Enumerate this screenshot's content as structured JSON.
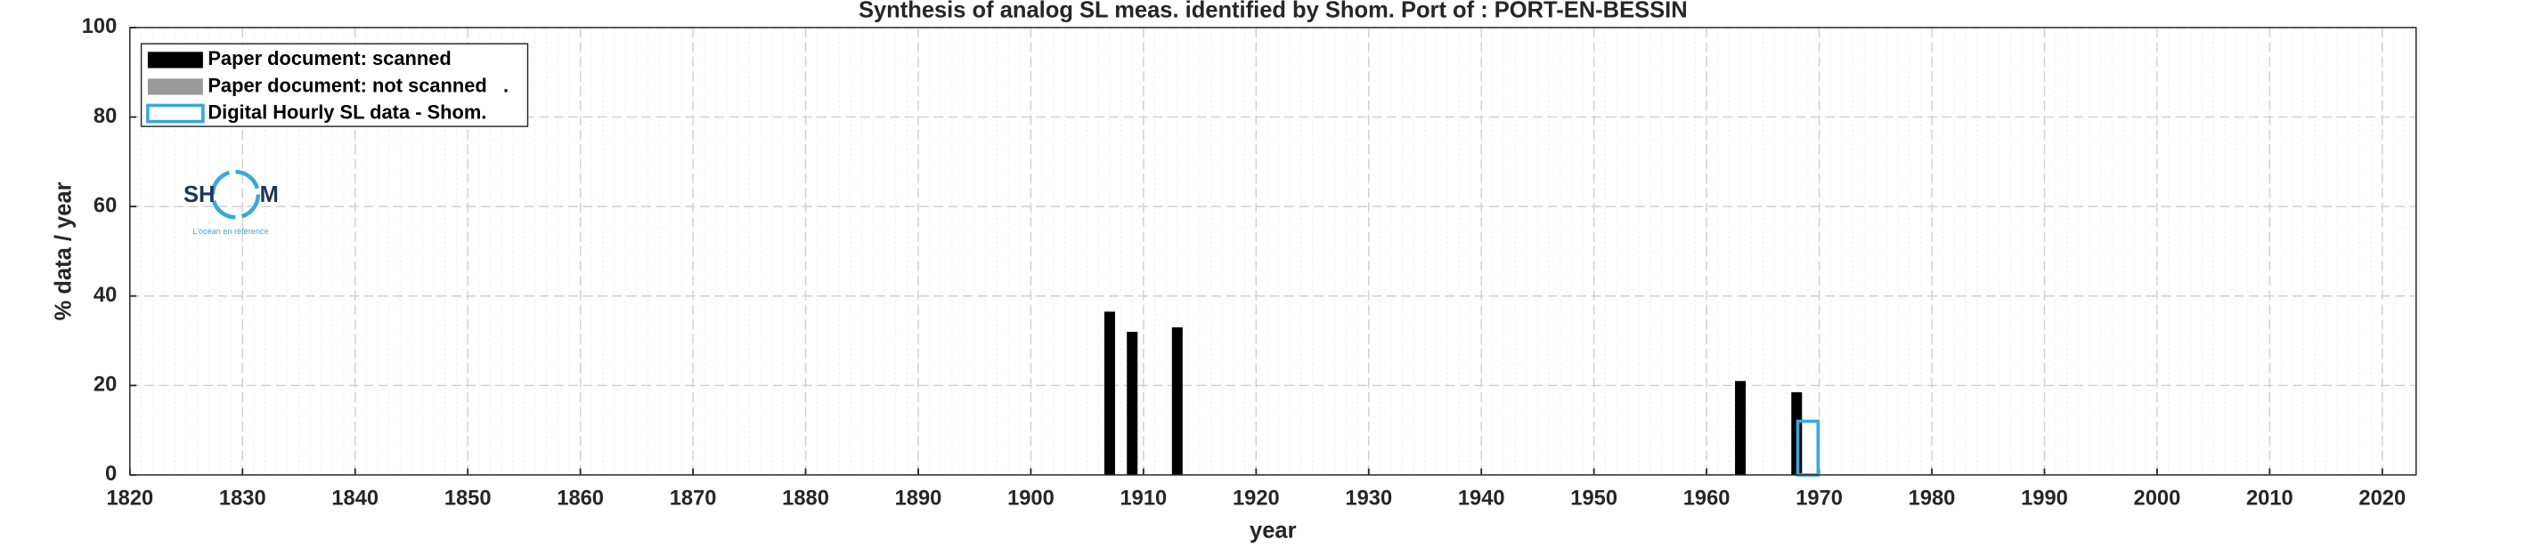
{
  "chart_data": {
    "type": "bar",
    "title": "Synthesis of analog SL meas. identified by Shom. Port of : PORT-EN-BESSIN",
    "x_label": "year",
    "y_label": "% data / year",
    "xlim": [
      1820,
      2023
    ],
    "ylim": [
      0,
      100
    ],
    "xticks": [
      1820,
      1830,
      1840,
      1850,
      1860,
      1870,
      1880,
      1890,
      1900,
      1910,
      1920,
      1930,
      1940,
      1950,
      1960,
      1970,
      1980,
      1990,
      2000,
      2010,
      2020
    ],
    "yticks": [
      0,
      20,
      40,
      60,
      80,
      100
    ],
    "grid": true,
    "legend": "upper left",
    "series": [
      {
        "name": "Paper document: scanned",
        "color": "#000000",
        "x": [
          1907,
          1909,
          1913,
          1963,
          1968
        ],
        "values": [
          36.5,
          32,
          33,
          21,
          18.5
        ]
      },
      {
        "name": "Paper document: not scanned   .",
        "color": "#999999",
        "x": [],
        "values": []
      },
      {
        "name": "Digital Hourly SL data - Shom.",
        "color": "#36a9e1",
        "x": [
          1969
        ],
        "values": [
          12
        ]
      }
    ],
    "logo": {
      "left": "SH",
      "right": "M",
      "tagline": "L'océan en référence"
    }
  }
}
